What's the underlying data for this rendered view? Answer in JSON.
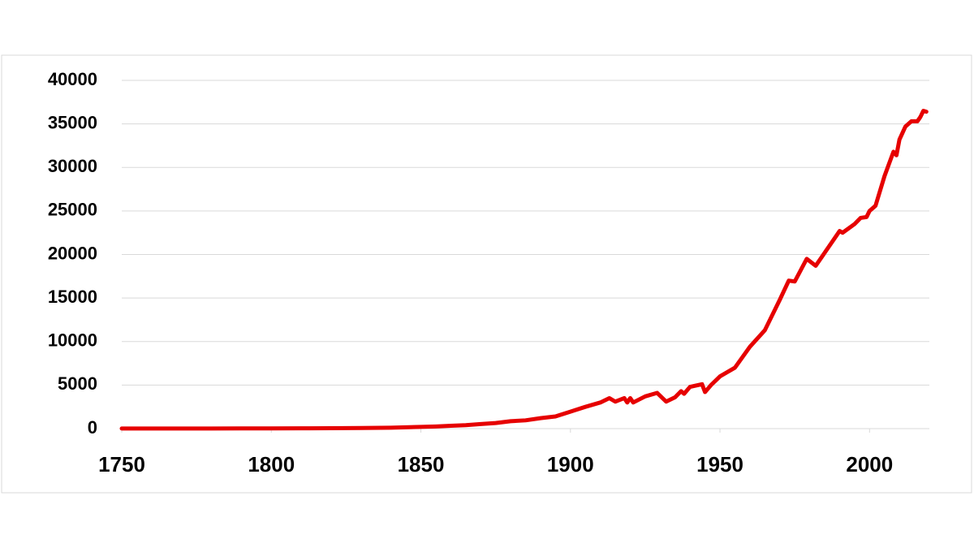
{
  "chart_data": {
    "type": "line",
    "x": [
      1750,
      1760,
      1770,
      1780,
      1790,
      1800,
      1810,
      1820,
      1830,
      1840,
      1850,
      1855,
      1860,
      1865,
      1870,
      1875,
      1880,
      1885,
      1890,
      1895,
      1900,
      1905,
      1910,
      1913,
      1915,
      1918,
      1919,
      1920,
      1921,
      1925,
      1929,
      1932,
      1935,
      1937,
      1938,
      1940,
      1944,
      1945,
      1947,
      1950,
      1955,
      1960,
      1965,
      1970,
      1973,
      1975,
      1979,
      1982,
      1985,
      1990,
      1991,
      1995,
      1997,
      1999,
      2000,
      2002,
      2005,
      2008,
      2009,
      2010,
      2012,
      2014,
      2016,
      2017,
      2018,
      2019
    ],
    "series": [
      {
        "color": "#e60000",
        "values": [
          9,
          10,
          11,
          13,
          18,
          28,
          35,
          44,
          70,
          100,
          197,
          250,
          330,
          400,
          520,
          640,
          850,
          950,
          1200,
          1400,
          1950,
          2500,
          3000,
          3500,
          3100,
          3500,
          3000,
          3500,
          3000,
          3700,
          4100,
          3100,
          3600,
          4300,
          4000,
          4800,
          5100,
          4200,
          5000,
          6000,
          7000,
          9400,
          11300,
          14800,
          17000,
          16900,
          19500,
          18700,
          20200,
          22700,
          22500,
          23500,
          24200,
          24300,
          25000,
          25600,
          29000,
          31800,
          31400,
          33200,
          34700,
          35300,
          35300,
          35800,
          36500,
          36400
        ]
      }
    ],
    "xlim": [
      1750,
      2020
    ],
    "xticks": [
      1750,
      1800,
      1850,
      1900,
      1950,
      2000
    ],
    "ylim": [
      0,
      40000
    ],
    "yticks": [
      0,
      5000,
      10000,
      15000,
      20000,
      25000,
      30000,
      35000,
      40000
    ],
    "grid": true
  }
}
